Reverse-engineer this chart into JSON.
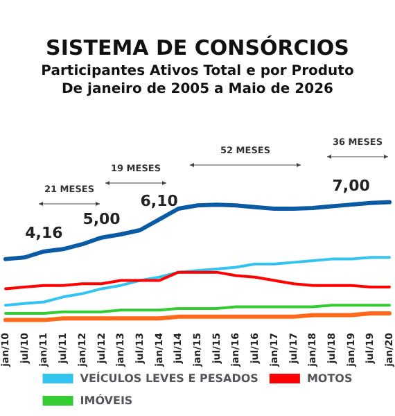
{
  "chart_data": {
    "type": "line",
    "title": "SISTEMA DE CONSÓRCIOS",
    "subtitle": "Participantes Ativos Total e por Produto\nDe janeiro de 2005 a Maio de 2026",
    "tick_labels": "x",
    "categories": [
      "jan/10",
      "jul/10",
      "jan/11",
      "jul/11",
      "jan/12",
      "jul/12",
      "jan/13",
      "jul/13",
      "jan/14",
      "jul/14",
      "jan/15",
      "jul/15",
      "jan/16",
      "jul/16",
      "jan/17",
      "jul/17",
      "jan/18",
      "jul/18",
      "jan/19",
      "jul/19",
      "jan/20"
    ],
    "series": [
      {
        "color": "#0b5aa5",
        "values": [
          3.7,
          3.8,
          4.16,
          4.3,
          4.6,
          5.0,
          5.2,
          5.45,
          6.1,
          6.75,
          6.95,
          7.0,
          6.95,
          6.85,
          6.75,
          6.75,
          6.8,
          6.9,
          7.0,
          7.1,
          7.15
        ],
        "value_labels": [
          null,
          null,
          "4,16",
          null,
          null,
          "5,00",
          null,
          null,
          "6,10",
          null,
          null,
          null,
          null,
          null,
          null,
          null,
          null,
          null,
          "7,00",
          null,
          null
        ]
      },
      {
        "name": "VEÍCULOS LEVES E PESADOS",
        "color": "#33c3f0",
        "values": [
          0.9,
          1.0,
          1.1,
          1.4,
          1.6,
          1.9,
          2.1,
          2.4,
          2.6,
          2.9,
          3.0,
          3.1,
          3.2,
          3.4,
          3.4,
          3.5,
          3.6,
          3.7,
          3.7,
          3.8,
          3.8
        ]
      },
      {
        "name": "MOTOS",
        "color": "#ff0000",
        "values": [
          1.9,
          2.0,
          2.1,
          2.1,
          2.2,
          2.2,
          2.4,
          2.4,
          2.4,
          2.9,
          2.9,
          2.9,
          2.7,
          2.6,
          2.4,
          2.2,
          2.1,
          2.1,
          2.1,
          2.0,
          2.0
        ]
      },
      {
        "name": "IMÓVEIS",
        "color": "#33cc33",
        "values": [
          0.4,
          0.4,
          0.4,
          0.5,
          0.5,
          0.5,
          0.6,
          0.6,
          0.6,
          0.7,
          0.7,
          0.7,
          0.8,
          0.8,
          0.8,
          0.8,
          0.8,
          0.9,
          0.9,
          0.9,
          0.9
        ]
      },
      {
        "color": "#ff6a1a",
        "values": [
          0,
          0,
          0,
          0.1,
          0.1,
          0.1,
          0.1,
          0.1,
          0.1,
          0.2,
          0.2,
          0.2,
          0.2,
          0.2,
          0.2,
          0.2,
          0.3,
          0.3,
          0.3,
          0.4,
          0.4
        ]
      }
    ],
    "annotations": [
      "21 MESES",
      "19 MESES",
      "52 MESES",
      "36 MESES"
    ],
    "legend": "bottom",
    "grid": false,
    "marker": "none",
    "line_style": "solid"
  }
}
